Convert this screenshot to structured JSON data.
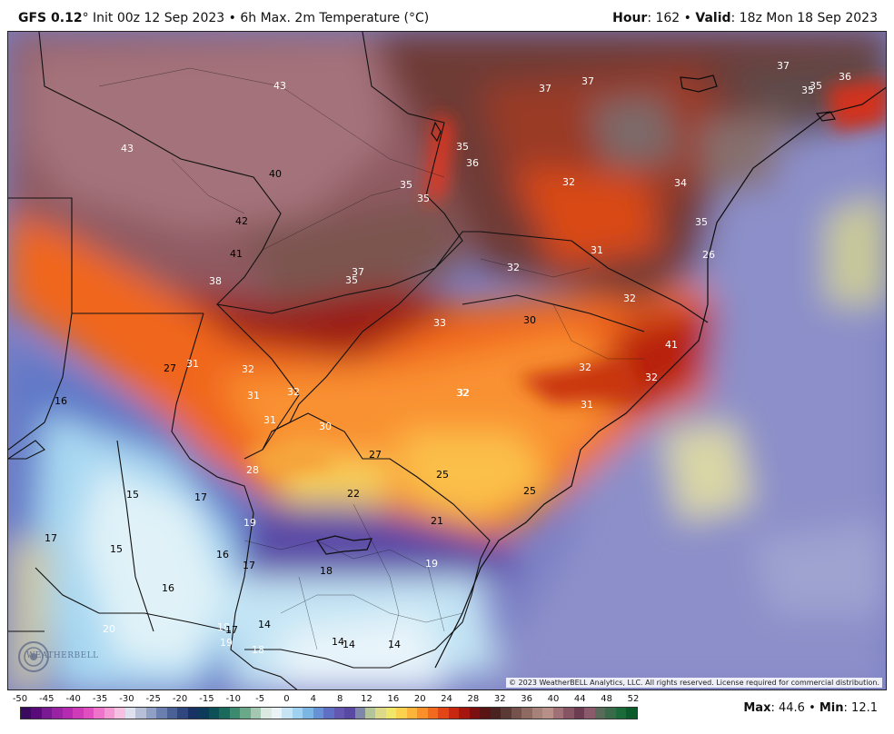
{
  "header": {
    "model": "GFS 0.12",
    "init": "° Init 00z 12 Sep 2023 • 6h Max. 2m Temperature (°C)",
    "hour_label": "Hour",
    "hour_value": ": 162 • ",
    "valid_label": "Valid",
    "valid_value": ": 18z Mon 18 Sep 2023"
  },
  "map": {
    "copyright": "© 2023 WeatherBELL Analytics, LLC. All rights reserved. License required for commercial distribution.",
    "logo": "WEATHERBELL",
    "labels": [
      {
        "v": "43",
        "c": "#ffffff"
      },
      {
        "v": "43",
        "c": "#ffffff"
      },
      {
        "v": "40",
        "c": "#000000"
      },
      {
        "v": "42",
        "c": "#000000"
      },
      {
        "v": "41",
        "c": "#000000"
      },
      {
        "v": "38",
        "c": "#ffffff"
      },
      {
        "v": "37",
        "c": "#ffffff"
      },
      {
        "v": "37",
        "c": "#ffffff"
      },
      {
        "v": "37",
        "c": "#ffffff"
      },
      {
        "v": "35",
        "c": "#ffffff"
      },
      {
        "v": "36",
        "c": "#ffffff"
      },
      {
        "v": "35",
        "c": "#ffffff"
      },
      {
        "v": "35",
        "c": "#ffffff"
      },
      {
        "v": "36",
        "c": "#ffffff"
      },
      {
        "v": "35",
        "c": "#ffffff"
      },
      {
        "v": "35",
        "c": "#ffffff"
      },
      {
        "v": "32",
        "c": "#ffffff"
      },
      {
        "v": "34",
        "c": "#ffffff"
      },
      {
        "v": "35",
        "c": "#ffffff"
      },
      {
        "v": "31",
        "c": "#ffffff"
      },
      {
        "v": "32",
        "c": "#ffffff"
      },
      {
        "v": "26",
        "c": "#ffffff"
      },
      {
        "v": "32",
        "c": "#ffffff"
      },
      {
        "v": "37",
        "c": "#ffffff"
      },
      {
        "v": "35",
        "c": "#ffffff"
      },
      {
        "v": "33",
        "c": "#ffffff"
      },
      {
        "v": "30",
        "c": "#000000"
      },
      {
        "v": "41",
        "c": "#ffffff"
      },
      {
        "v": "32",
        "c": "#ffffff"
      },
      {
        "v": "32",
        "c": "#ffffff"
      },
      {
        "v": "32",
        "c": "#ffffff"
      },
      {
        "v": "31",
        "c": "#ffffff"
      },
      {
        "v": "27",
        "c": "#000000"
      },
      {
        "v": "31",
        "c": "#ffffff"
      },
      {
        "v": "32",
        "c": "#ffffff"
      },
      {
        "v": "31",
        "c": "#ffffff"
      },
      {
        "v": "32",
        "c": "#ffffff"
      },
      {
        "v": "31",
        "c": "#ffffff"
      },
      {
        "v": "30",
        "c": "#ffffff"
      },
      {
        "v": "32",
        "c": "#ffffff"
      },
      {
        "v": "16",
        "c": "#000000"
      },
      {
        "v": "27",
        "c": "#000000"
      },
      {
        "v": "25",
        "c": "#000000"
      },
      {
        "v": "25",
        "c": "#000000"
      },
      {
        "v": "28",
        "c": "#ffffff"
      },
      {
        "v": "22",
        "c": "#000000"
      },
      {
        "v": "21",
        "c": "#000000"
      },
      {
        "v": "15",
        "c": "#000000"
      },
      {
        "v": "17",
        "c": "#000000"
      },
      {
        "v": "19",
        "c": "#ffffff"
      },
      {
        "v": "17",
        "c": "#000000"
      },
      {
        "v": "15",
        "c": "#000000"
      },
      {
        "v": "16",
        "c": "#000000"
      },
      {
        "v": "17",
        "c": "#000000"
      },
      {
        "v": "18",
        "c": "#000000"
      },
      {
        "v": "19",
        "c": "#ffffff"
      },
      {
        "v": "16",
        "c": "#000000"
      },
      {
        "v": "20",
        "c": "#ffffff"
      },
      {
        "v": "18",
        "c": "#ffffff"
      },
      {
        "v": "17",
        "c": "#000000"
      },
      {
        "v": "14",
        "c": "#000000"
      },
      {
        "v": "19",
        "c": "#ffffff"
      },
      {
        "v": "18",
        "c": "#ffffff"
      },
      {
        "v": "14",
        "c": "#000000"
      },
      {
        "v": "14",
        "c": "#000000"
      },
      {
        "v": "14",
        "c": "#000000"
      }
    ]
  },
  "colorbar": {
    "ticks": [
      "-50",
      "-45",
      "-40",
      "-35",
      "-30",
      "-25",
      "-20",
      "-15",
      "-10",
      "-5",
      "0",
      "4",
      "8",
      "12",
      "16",
      "20",
      "24",
      "28",
      "32",
      "36",
      "40",
      "44",
      "48",
      "52"
    ],
    "colors": [
      "#3a0a5e",
      "#5a0b7a",
      "#7a1a92",
      "#9a22a4",
      "#b62ab2",
      "#cf3ab8",
      "#e04fbf",
      "#ee74c9",
      "#f39ad4",
      "#f5c0e2",
      "#dfe0ee",
      "#b7bfd8",
      "#8fa0c4",
      "#6a7fae",
      "#4a6196",
      "#2f477e",
      "#193265",
      "#0f3b5a",
      "#0e5058",
      "#1a6a5c",
      "#3c8a70",
      "#6aa88a",
      "#a3c7b0",
      "#dce9e2",
      "#eaf2f7",
      "#c6e4f4",
      "#9fd2f0",
      "#7bb6e4",
      "#6691d4",
      "#5e6fc4",
      "#6457b2",
      "#5a49a2",
      "#7e86ac",
      "#b3c39a",
      "#dcd988",
      "#f0e66a",
      "#fbd24e",
      "#fdb43a",
      "#fb8f2a",
      "#f26a1e",
      "#e24616",
      "#c82810",
      "#a4160e",
      "#7c1010",
      "#5a1414",
      "#4a2220",
      "#5b3a36",
      "#75524c",
      "#8e6a62",
      "#a78278",
      "#b98f8a",
      "#a07076",
      "#865462",
      "#6c3c50",
      "#8b5a6a",
      "#5a6a5a",
      "#3b6a4a",
      "#1a6a3a",
      "#0b5a2a"
    ],
    "max_label": "Max",
    "max_value": ": 44.6 • ",
    "min_label": "Min",
    "min_value": ": 12.1"
  }
}
